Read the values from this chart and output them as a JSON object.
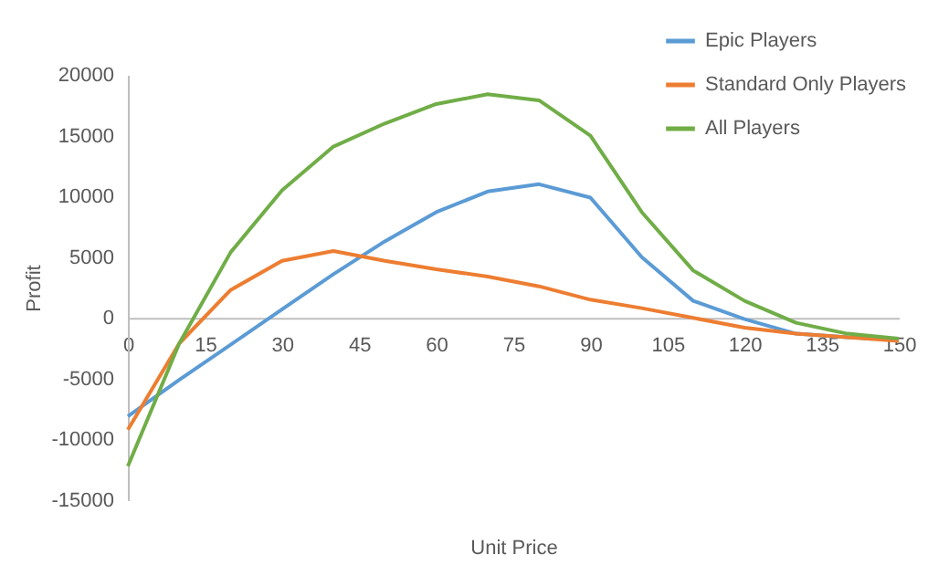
{
  "chart_data": {
    "type": "line",
    "xlabel": "Unit Price",
    "ylabel": "Profit",
    "x": [
      0,
      10,
      20,
      30,
      40,
      50,
      60,
      70,
      80,
      90,
      100,
      110,
      120,
      130,
      140,
      150
    ],
    "series": [
      {
        "name": "Epic Players",
        "color": "#5b9bd5",
        "values": [
          -8100,
          -5100,
          -2200,
          700,
          3600,
          6300,
          8700,
          10400,
          11000,
          9900,
          5000,
          1400,
          -100,
          -1300,
          -1600,
          -1800
        ]
      },
      {
        "name": "Standard Only Players",
        "color": "#ed7d31",
        "values": [
          -9200,
          -2100,
          2300,
          4700,
          5500,
          4700,
          4000,
          3400,
          2600,
          1500,
          800,
          0,
          -800,
          -1300,
          -1600,
          -1900
        ]
      },
      {
        "name": "All Players",
        "color": "#70ad47",
        "values": [
          -12200,
          -2100,
          5400,
          10500,
          14100,
          16000,
          17600,
          18400,
          17900,
          15000,
          8700,
          3900,
          1400,
          -400,
          -1300,
          -1700
        ]
      }
    ],
    "xlim": [
      0,
      150
    ],
    "xticks": [
      0,
      15,
      30,
      45,
      60,
      75,
      90,
      105,
      120,
      135,
      150
    ],
    "ylim": [
      -15000,
      20000
    ],
    "yticks": [
      -15000,
      -10000,
      -5000,
      0,
      5000,
      10000,
      15000,
      20000
    ],
    "grid": false,
    "legend": "top right",
    "marker": "none",
    "line_style": "solid"
  }
}
